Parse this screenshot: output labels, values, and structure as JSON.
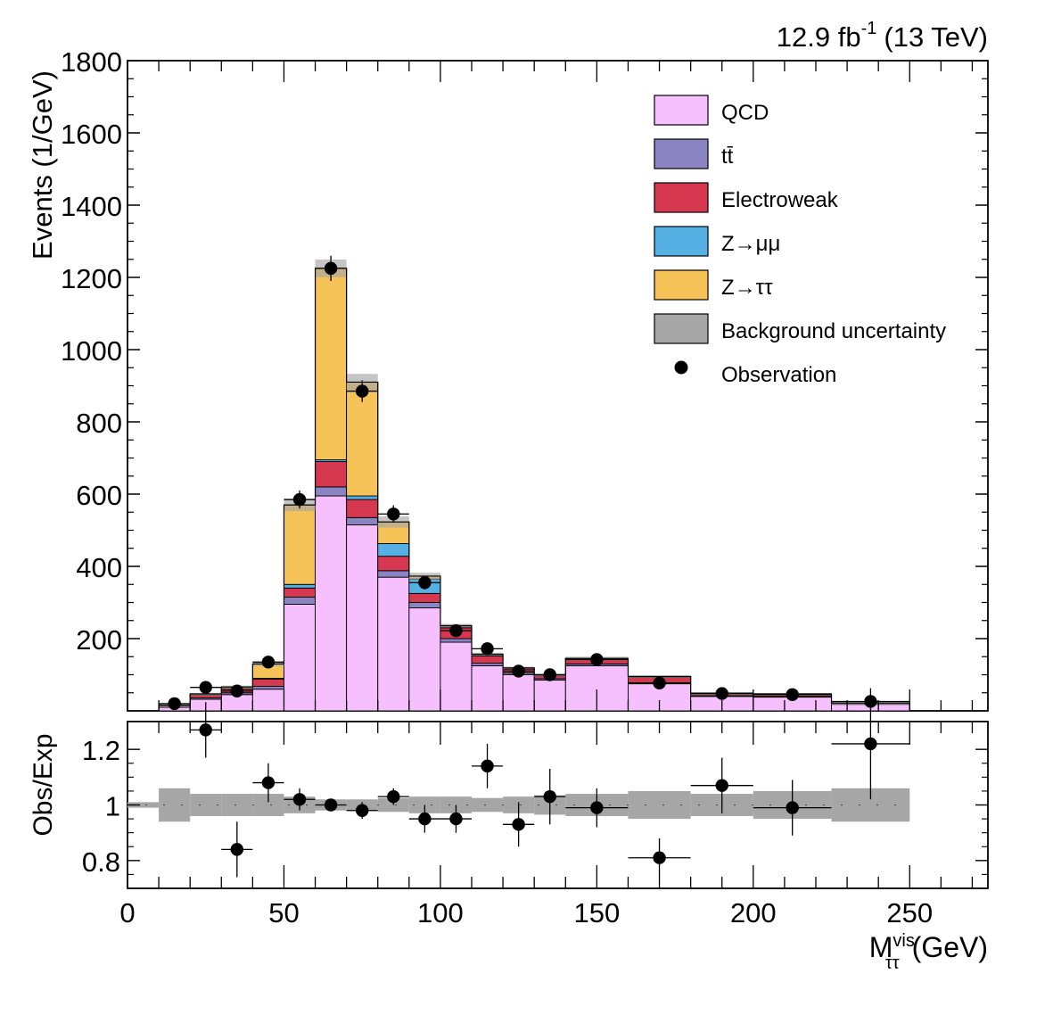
{
  "chart_data": [
    {
      "panel": "main",
      "type": "bar",
      "stacked": true,
      "top_right_label": "12.9 fb-1 (13 TeV)",
      "lumi_text": {
        "value": "12.9 fb",
        "superscript": "-1",
        "energy": "(13 TeV)"
      },
      "ylabel": "Events (1/GeV)",
      "xlim": [
        0,
        275
      ],
      "ylim": [
        0,
        1800
      ],
      "yticks": [
        "200",
        "400",
        "600",
        "800",
        "1000",
        "1200",
        "1400",
        "1600",
        "1800"
      ],
      "bins": [
        [
          10,
          20
        ],
        [
          20,
          30
        ],
        [
          30,
          40
        ],
        [
          40,
          50
        ],
        [
          50,
          60
        ],
        [
          60,
          70
        ],
        [
          70,
          80
        ],
        [
          80,
          90
        ],
        [
          90,
          100
        ],
        [
          100,
          110
        ],
        [
          110,
          120
        ],
        [
          120,
          130
        ],
        [
          130,
          140
        ],
        [
          140,
          160
        ],
        [
          160,
          180
        ],
        [
          180,
          200
        ],
        [
          200,
          225
        ],
        [
          225,
          250
        ]
      ],
      "series": [
        {
          "name": "QCD",
          "color": "#f6bffd",
          "values": [
            10,
            32,
            45,
            60,
            295,
            595,
            515,
            370,
            285,
            190,
            125,
            100,
            85,
            125,
            75,
            40,
            38,
            18
          ]
        },
        {
          "name": "tt̄",
          "color": "#8b84c2",
          "values": [
            2,
            4,
            5,
            8,
            20,
            25,
            20,
            18,
            15,
            10,
            7,
            5,
            4,
            5,
            3,
            2,
            2,
            1
          ]
        },
        {
          "name": "Electroweak",
          "color": "#d5384f",
          "values": [
            3,
            8,
            10,
            20,
            25,
            70,
            50,
            40,
            25,
            30,
            20,
            10,
            8,
            12,
            15,
            5,
            5,
            3
          ]
        },
        {
          "name": "Z→μμ",
          "color": "#55b0e3",
          "values": [
            0,
            0,
            1,
            2,
            10,
            5,
            10,
            35,
            40,
            3,
            3,
            2,
            1,
            1,
            1,
            1,
            1,
            0
          ]
        },
        {
          "name": "Z→ττ",
          "color": "#f5c357",
          "values": [
            1,
            3,
            5,
            40,
            220,
            530,
            315,
            60,
            8,
            3,
            2,
            2,
            2,
            2,
            1,
            1,
            1,
            0
          ]
        }
      ],
      "uncertainty": {
        "name": "Background uncertainty",
        "color": "#a6a6a6",
        "rel": [
          0.08,
          0.06,
          0.06,
          0.05,
          0.03,
          0.02,
          0.025,
          0.03,
          0.025,
          0.02,
          0.025,
          0.03,
          0.03,
          0.035,
          0.04,
          0.04,
          0.05,
          0.06
        ]
      },
      "observation": {
        "name": "Observation",
        "x": [
          15,
          25,
          35,
          45,
          55,
          65,
          75,
          85,
          95,
          105,
          115,
          125,
          135,
          150,
          170,
          190,
          212.5,
          237.5
        ],
        "y": [
          20,
          65,
          55,
          135,
          585,
          1225,
          885,
          545,
          355,
          222,
          172,
          110,
          100,
          142,
          77,
          48,
          45,
          26
        ],
        "err": [
          5,
          8,
          8,
          12,
          25,
          35,
          30,
          24,
          19,
          15,
          13,
          11,
          10,
          9,
          6,
          5,
          4,
          3
        ]
      },
      "legend_position": "top-right",
      "legend_entries": [
        {
          "label": "QCD",
          "kind": "box",
          "color": "#f6bffd"
        },
        {
          "label": "tt̄",
          "kind": "box",
          "color": "#8b84c2"
        },
        {
          "label": "Electroweak",
          "kind": "box",
          "color": "#d5384f"
        },
        {
          "label": "Z→μμ",
          "kind": "box",
          "color": "#55b0e3"
        },
        {
          "label": "Z→ττ",
          "kind": "box",
          "color": "#f5c357"
        },
        {
          "label": "Background uncertainty",
          "kind": "box",
          "color": "#a6a6a6"
        },
        {
          "label": "Observation",
          "kind": "marker",
          "color": "#000000"
        }
      ]
    },
    {
      "panel": "ratio",
      "type": "scatter",
      "ylabel": "Obs/Exp",
      "xlim": [
        0,
        275
      ],
      "ylim": [
        0.7,
        1.3
      ],
      "yticks": [
        "0.8",
        "1",
        "1.2"
      ],
      "xticks": [
        "0",
        "50",
        "100",
        "150",
        "200",
        "250"
      ],
      "xlabel": {
        "main": "M",
        "superscript": "vis",
        "subscript": "ττ",
        "unit": "(GeV)"
      },
      "band_x": [
        [
          0,
          10
        ],
        [
          10,
          20
        ],
        [
          20,
          30
        ],
        [
          30,
          40
        ],
        [
          40,
          50
        ],
        [
          50,
          60
        ],
        [
          60,
          70
        ],
        [
          70,
          80
        ],
        [
          80,
          90
        ],
        [
          90,
          100
        ],
        [
          100,
          110
        ],
        [
          110,
          120
        ],
        [
          120,
          130
        ],
        [
          130,
          140
        ],
        [
          140,
          160
        ],
        [
          160,
          180
        ],
        [
          180,
          200
        ],
        [
          200,
          225
        ],
        [
          225,
          250
        ]
      ],
      "band_rel": [
        0.01,
        0.06,
        0.04,
        0.04,
        0.04,
        0.03,
        0.02,
        0.02,
        0.025,
        0.03,
        0.03,
        0.025,
        0.03,
        0.035,
        0.04,
        0.05,
        0.04,
        0.05,
        0.06
      ],
      "points": {
        "x": [
          25,
          35,
          45,
          55,
          65,
          75,
          85,
          95,
          105,
          115,
          125,
          135,
          150,
          170,
          190,
          212.5,
          237.5
        ],
        "y": [
          1.27,
          0.84,
          1.08,
          1.02,
          1.0,
          0.98,
          1.03,
          0.95,
          0.95,
          1.14,
          0.93,
          1.03,
          0.99,
          0.81,
          1.07,
          0.99,
          1.22
        ],
        "err": [
          0.1,
          0.1,
          0.07,
          0.04,
          0.02,
          0.03,
          0.03,
          0.05,
          0.05,
          0.08,
          0.08,
          0.1,
          0.07,
          0.07,
          0.1,
          0.1,
          0.2
        ]
      }
    }
  ]
}
